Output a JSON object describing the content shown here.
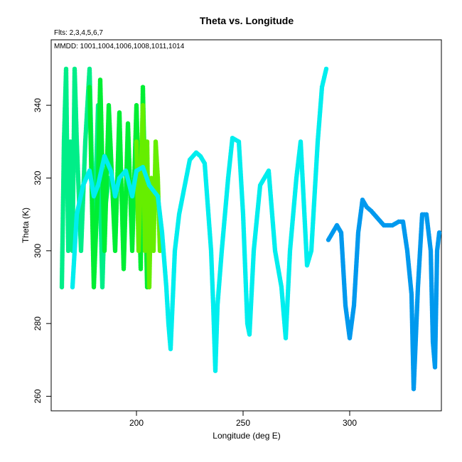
{
  "chart_data": {
    "type": "scatter",
    "title": "Theta vs. Longitude",
    "subtitle_flights": "Flts: 2,3,4,5,6,7",
    "subtitle_dates": "MMDD: 1001,1004,1006,1008,1011,1014",
    "xlabel": "Longitude (deg E)",
    "ylabel": "Theta (K)",
    "xlim": [
      160,
      343
    ],
    "ylim": [
      256,
      358
    ],
    "xticks": [
      200,
      250,
      300
    ],
    "yticks": [
      260,
      280,
      300,
      320,
      340
    ],
    "grid": false,
    "legend": "none",
    "series": [
      {
        "color": "#00ee88",
        "points": [
          [
            165,
            290
          ],
          [
            166,
            330
          ],
          [
            167,
            350
          ],
          [
            168,
            300
          ],
          [
            169,
            330
          ],
          [
            170,
            300
          ],
          [
            171,
            350
          ],
          [
            172,
            330
          ],
          [
            174,
            300
          ],
          [
            176,
            330
          ],
          [
            178,
            350
          ],
          [
            180,
            300
          ],
          [
            182,
            340
          ],
          [
            184,
            290
          ],
          [
            185,
            310
          ],
          [
            187,
            320
          ]
        ]
      },
      {
        "color": "#00ee33",
        "points": [
          [
            178,
            345
          ],
          [
            180,
            290
          ],
          [
            182,
            320
          ],
          [
            183,
            347
          ],
          [
            185,
            300
          ],
          [
            187,
            340
          ],
          [
            190,
            300
          ],
          [
            192,
            338
          ],
          [
            194,
            295
          ],
          [
            196,
            335
          ],
          [
            198,
            300
          ],
          [
            200,
            340
          ],
          [
            202,
            295
          ],
          [
            203,
            345
          ],
          [
            205,
            290
          ]
        ]
      },
      {
        "color": "#66ee00",
        "points": [
          [
            200,
            330
          ],
          [
            201,
            300
          ],
          [
            202,
            320
          ],
          [
            203,
            340
          ],
          [
            204,
            300
          ],
          [
            205,
            330
          ],
          [
            206,
            290
          ],
          [
            207,
            320
          ],
          [
            208,
            300
          ],
          [
            209,
            330
          ],
          [
            210,
            320
          ],
          [
            211,
            300
          ]
        ]
      },
      {
        "color": "#00eeee",
        "points": [
          [
            170,
            290
          ],
          [
            172,
            310
          ],
          [
            175,
            318
          ],
          [
            178,
            322
          ],
          [
            180,
            315
          ],
          [
            182,
            318
          ],
          [
            185,
            326
          ],
          [
            188,
            322
          ],
          [
            190,
            315
          ],
          [
            192,
            320
          ],
          [
            195,
            322
          ],
          [
            198,
            315
          ],
          [
            200,
            322
          ],
          [
            203,
            323
          ],
          [
            206,
            318
          ],
          [
            210,
            315
          ],
          [
            212,
            305
          ],
          [
            214,
            290
          ],
          [
            215,
            280
          ],
          [
            216,
            273
          ],
          [
            218,
            300
          ],
          [
            220,
            310
          ],
          [
            225,
            325
          ],
          [
            228,
            327
          ],
          [
            230,
            326
          ],
          [
            232,
            324
          ],
          [
            235,
            300
          ],
          [
            236,
            285
          ],
          [
            237,
            267
          ],
          [
            238,
            285
          ],
          [
            240,
            300
          ],
          [
            243,
            320
          ],
          [
            245,
            331
          ],
          [
            248,
            330
          ],
          [
            250,
            310
          ],
          [
            252,
            280
          ],
          [
            253,
            277
          ],
          [
            255,
            300
          ],
          [
            258,
            318
          ],
          [
            262,
            322
          ],
          [
            265,
            300
          ],
          [
            268,
            290
          ],
          [
            270,
            276
          ],
          [
            272,
            300
          ],
          [
            275,
            320
          ],
          [
            277,
            330
          ],
          [
            280,
            296
          ],
          [
            282,
            300
          ],
          [
            285,
            330
          ],
          [
            287,
            345
          ],
          [
            289,
            350
          ]
        ]
      },
      {
        "color": "#0099ee",
        "points": [
          [
            290,
            303
          ],
          [
            292,
            305
          ],
          [
            294,
            307
          ],
          [
            296,
            305
          ],
          [
            298,
            285
          ],
          [
            300,
            276
          ],
          [
            302,
            285
          ],
          [
            304,
            305
          ],
          [
            306,
            314
          ],
          [
            308,
            312
          ],
          [
            310,
            311
          ],
          [
            313,
            309
          ],
          [
            316,
            307
          ],
          [
            320,
            307
          ],
          [
            323,
            308
          ],
          [
            325,
            308
          ],
          [
            327,
            300
          ],
          [
            329,
            288
          ],
          [
            330,
            262
          ],
          [
            332,
            290
          ],
          [
            334,
            310
          ],
          [
            336,
            310
          ],
          [
            338,
            300
          ],
          [
            339,
            275
          ],
          [
            340,
            268
          ],
          [
            341,
            300
          ],
          [
            342,
            305
          ]
        ]
      }
    ]
  }
}
